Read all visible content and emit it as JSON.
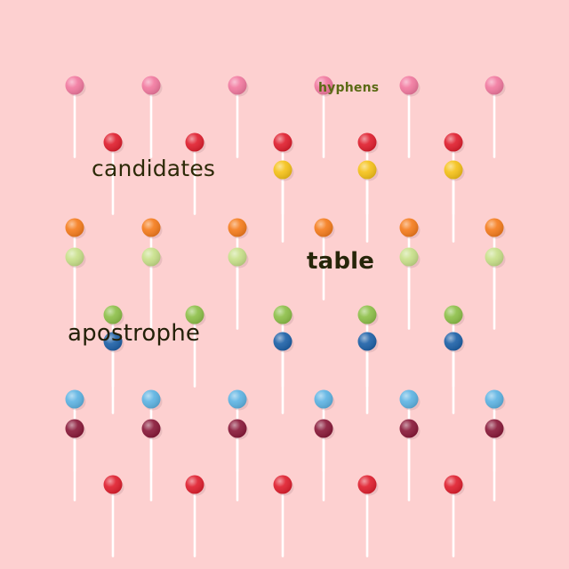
{
  "scene": {
    "description_words": {
      "hyphens": "hyphens",
      "candidates": "candidates",
      "table": "table",
      "apostrophe": "apostrophe"
    },
    "colors": {
      "background": "#fdd0d0",
      "stick": "#ffffff",
      "pink": "#f27aa0",
      "red": "#e0202f",
      "yellow": "#f5c21a",
      "orange": "#f57d1e",
      "lime": "#c8e08a",
      "green": "#8ec04a",
      "blue": "#1f62a8",
      "sky": "#5fb4e3",
      "plum": "#8a1a3a"
    },
    "lollipop_rows": [
      {
        "color": "pink",
        "columns": [
          0,
          2,
          4,
          6,
          8,
          10
        ]
      },
      {
        "color": "red",
        "columns": [
          1,
          3,
          5,
          7,
          9
        ]
      },
      {
        "color": "yellow",
        "columns": [
          5,
          7,
          9
        ]
      },
      {
        "color": "orange",
        "columns": [
          0,
          2,
          4,
          6,
          8,
          10
        ]
      },
      {
        "color": "lime",
        "columns": [
          0,
          2,
          4,
          8,
          10
        ]
      },
      {
        "color": "green",
        "columns": [
          1,
          3,
          5,
          7,
          9
        ]
      },
      {
        "color": "blue",
        "columns": [
          1,
          5,
          7,
          9
        ]
      },
      {
        "color": "sky",
        "columns": [
          0,
          2,
          4,
          6,
          8,
          10
        ]
      },
      {
        "color": "plum",
        "columns": [
          0,
          2,
          4,
          6,
          8,
          10
        ]
      },
      {
        "color": "red",
        "columns": [
          1,
          3,
          5,
          7,
          9
        ]
      }
    ]
  }
}
